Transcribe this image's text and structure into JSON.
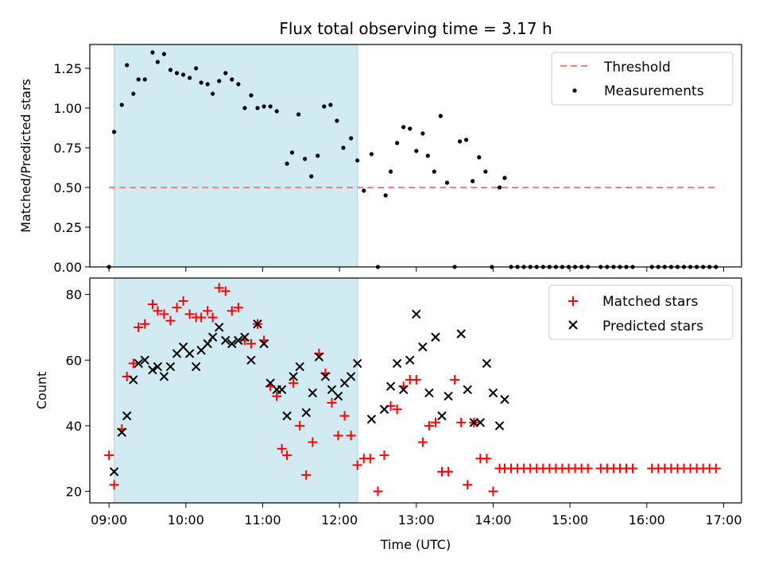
{
  "title": "Flux total observing time = 3.17 h",
  "shade_color": "#add8e6",
  "colors": {
    "threshold": "#ff7f7f",
    "measurement": "#000000",
    "matched": "#ff0000",
    "predicted": "#000000"
  },
  "chart_data": [
    {
      "type": "scatter",
      "ylabel": "Matched/Predicted stars",
      "ylim": [
        0,
        1.4
      ],
      "xlim": [
        "08:45",
        "17:14"
      ],
      "yticks": [
        "0.00",
        "0.25",
        "0.50",
        "0.75",
        "1.00",
        "1.25"
      ],
      "ytick_values": [
        0,
        0.25,
        0.5,
        0.75,
        1.0,
        1.25
      ],
      "shaded_interval": [
        "09:04",
        "12:14"
      ],
      "legend": {
        "position": "top-right",
        "entries": [
          "Threshold",
          "Measurements"
        ]
      },
      "threshold": {
        "name": "Threshold",
        "y": 0.5,
        "x_range": [
          "09:00",
          "16:55"
        ],
        "style": "dashed"
      },
      "series": [
        {
          "name": "Measurements",
          "marker": "dot",
          "points": [
            [
              "09:00",
              0.0
            ],
            [
              "09:04",
              0.85
            ],
            [
              "09:10",
              1.02
            ],
            [
              "09:14",
              1.27
            ],
            [
              "09:19",
              1.09
            ],
            [
              "09:23",
              1.18
            ],
            [
              "09:28",
              1.18
            ],
            [
              "09:34",
              1.35
            ],
            [
              "09:38",
              1.29
            ],
            [
              "09:43",
              1.34
            ],
            [
              "09:48",
              1.24
            ],
            [
              "09:53",
              1.22
            ],
            [
              "09:58",
              1.21
            ],
            [
              "10:03",
              1.19
            ],
            [
              "10:08",
              1.25
            ],
            [
              "10:12",
              1.16
            ],
            [
              "10:17",
              1.15
            ],
            [
              "10:21",
              1.09
            ],
            [
              "10:26",
              1.17
            ],
            [
              "10:31",
              1.22
            ],
            [
              "10:36",
              1.18
            ],
            [
              "10:41",
              1.15
            ],
            [
              "10:46",
              1.0
            ],
            [
              "10:51",
              1.08
            ],
            [
              "10:56",
              1.0
            ],
            [
              "11:01",
              1.01
            ],
            [
              "11:06",
              1.01
            ],
            [
              "11:11",
              0.98
            ],
            [
              "11:19",
              0.65
            ],
            [
              "11:23",
              0.72
            ],
            [
              "11:28",
              0.96
            ],
            [
              "11:33",
              0.68
            ],
            [
              "11:38",
              0.57
            ],
            [
              "11:43",
              0.7
            ],
            [
              "11:48",
              1.01
            ],
            [
              "11:53",
              1.02
            ],
            [
              "11:58",
              0.92
            ],
            [
              "12:03",
              0.75
            ],
            [
              "12:09",
              0.81
            ],
            [
              "12:14",
              0.67
            ],
            [
              "12:19",
              0.48
            ],
            [
              "12:25",
              0.71
            ],
            [
              "12:30",
              0.0
            ],
            [
              "12:36",
              0.45
            ],
            [
              "12:40",
              0.6
            ],
            [
              "12:45",
              0.78
            ],
            [
              "12:50",
              0.88
            ],
            [
              "12:55",
              0.87
            ],
            [
              "13:00",
              0.73
            ],
            [
              "13:05",
              0.84
            ],
            [
              "13:09",
              0.7
            ],
            [
              "13:14",
              0.6
            ],
            [
              "13:19",
              0.95
            ],
            [
              "13:24",
              0.53
            ],
            [
              "13:30",
              0.0
            ],
            [
              "13:34",
              0.79
            ],
            [
              "13:39",
              0.8
            ],
            [
              "13:44",
              0.54
            ],
            [
              "13:49",
              0.69
            ],
            [
              "13:54",
              0.6
            ],
            [
              "13:59",
              0.0
            ],
            [
              "14:05",
              0.5
            ],
            [
              "14:09",
              0.56
            ],
            [
              "14:14",
              0.0
            ],
            [
              "14:19",
              0.0
            ],
            [
              "14:24",
              0.0
            ],
            [
              "14:29",
              0.0
            ],
            [
              "14:34",
              0.0
            ],
            [
              "14:39",
              0.0
            ],
            [
              "14:44",
              0.0
            ],
            [
              "14:49",
              0.0
            ],
            [
              "14:54",
              0.0
            ],
            [
              "14:59",
              0.0
            ],
            [
              "15:04",
              0.0
            ],
            [
              "15:09",
              0.0
            ],
            [
              "15:14",
              0.0
            ],
            [
              "15:24",
              0.0
            ],
            [
              "15:29",
              0.0
            ],
            [
              "15:34",
              0.0
            ],
            [
              "15:39",
              0.0
            ],
            [
              "15:44",
              0.0
            ],
            [
              "15:49",
              0.0
            ],
            [
              "16:04",
              0.0
            ],
            [
              "16:09",
              0.0
            ],
            [
              "16:14",
              0.0
            ],
            [
              "16:19",
              0.0
            ],
            [
              "16:24",
              0.0
            ],
            [
              "16:29",
              0.0
            ],
            [
              "16:34",
              0.0
            ],
            [
              "16:39",
              0.0
            ],
            [
              "16:44",
              0.0
            ],
            [
              "16:49",
              0.0
            ],
            [
              "16:54",
              0.0
            ]
          ]
        }
      ]
    },
    {
      "type": "scatter",
      "xlabel": "Time (UTC)",
      "ylabel": "Count",
      "ylim": [
        16.5,
        85
      ],
      "xlim": [
        "08:45",
        "17:14"
      ],
      "xticks": [
        "09:00",
        "10:00",
        "11:00",
        "12:00",
        "13:00",
        "14:00",
        "15:00",
        "16:00",
        "17:00"
      ],
      "yticks": [
        "20",
        "40",
        "60",
        "80"
      ],
      "ytick_values": [
        20,
        40,
        60,
        80
      ],
      "shaded_interval": [
        "09:04",
        "12:14"
      ],
      "legend": {
        "position": "top-right",
        "entries": [
          "Matched stars",
          "Predicted stars"
        ]
      },
      "series": [
        {
          "name": "Matched stars",
          "marker": "plus",
          "points": [
            [
              "09:00",
              31
            ],
            [
              "09:04",
              22
            ],
            [
              "09:10",
              39
            ],
            [
              "09:14",
              55
            ],
            [
              "09:19",
              59
            ],
            [
              "09:23",
              70
            ],
            [
              "09:28",
              71
            ],
            [
              "09:34",
              77
            ],
            [
              "09:38",
              75
            ],
            [
              "09:43",
              74
            ],
            [
              "09:48",
              72
            ],
            [
              "09:53",
              76
            ],
            [
              "09:58",
              78
            ],
            [
              "10:03",
              74
            ],
            [
              "10:08",
              73
            ],
            [
              "10:12",
              73
            ],
            [
              "10:17",
              75
            ],
            [
              "10:21",
              73
            ],
            [
              "10:26",
              82
            ],
            [
              "10:31",
              81
            ],
            [
              "10:36",
              75
            ],
            [
              "10:41",
              76
            ],
            [
              "10:46",
              66
            ],
            [
              "10:51",
              65
            ],
            [
              "10:56",
              71
            ],
            [
              "11:01",
              66
            ],
            [
              "11:06",
              52
            ],
            [
              "11:11",
              49
            ],
            [
              "11:15",
              33
            ],
            [
              "11:19",
              31
            ],
            [
              "11:24",
              53
            ],
            [
              "11:29",
              40
            ],
            [
              "11:34",
              25
            ],
            [
              "11:39",
              35
            ],
            [
              "11:44",
              62
            ],
            [
              "11:49",
              56
            ],
            [
              "11:54",
              47
            ],
            [
              "11:59",
              37
            ],
            [
              "12:04",
              43
            ],
            [
              "12:09",
              37
            ],
            [
              "12:14",
              28
            ],
            [
              "12:19",
              30
            ],
            [
              "12:24",
              30
            ],
            [
              "12:30",
              20
            ],
            [
              "12:35",
              31
            ],
            [
              "12:40",
              46
            ],
            [
              "12:45",
              45
            ],
            [
              "12:50",
              52
            ],
            [
              "12:55",
              54
            ],
            [
              "13:00",
              54
            ],
            [
              "13:05",
              35
            ],
            [
              "13:10",
              40
            ],
            [
              "13:15",
              41
            ],
            [
              "13:20",
              26
            ],
            [
              "13:25",
              26
            ],
            [
              "13:30",
              54
            ],
            [
              "13:35",
              41
            ],
            [
              "13:40",
              22
            ],
            [
              "13:45",
              41
            ],
            [
              "13:50",
              30
            ],
            [
              "13:55",
              30
            ],
            [
              "14:00",
              20
            ],
            [
              "14:05",
              27
            ],
            [
              "14:09",
              27
            ],
            [
              "14:14",
              27
            ],
            [
              "14:19",
              27
            ],
            [
              "14:24",
              27
            ],
            [
              "14:29",
              27
            ],
            [
              "14:34",
              27
            ],
            [
              "14:39",
              27
            ],
            [
              "14:44",
              27
            ],
            [
              "14:49",
              27
            ],
            [
              "14:54",
              27
            ],
            [
              "14:59",
              27
            ],
            [
              "15:04",
              27
            ],
            [
              "15:09",
              27
            ],
            [
              "15:14",
              27
            ],
            [
              "15:24",
              27
            ],
            [
              "15:29",
              27
            ],
            [
              "15:34",
              27
            ],
            [
              "15:39",
              27
            ],
            [
              "15:44",
              27
            ],
            [
              "15:49",
              27
            ],
            [
              "16:04",
              27
            ],
            [
              "16:09",
              27
            ],
            [
              "16:14",
              27
            ],
            [
              "16:19",
              27
            ],
            [
              "16:24",
              27
            ],
            [
              "16:29",
              27
            ],
            [
              "16:34",
              27
            ],
            [
              "16:39",
              27
            ],
            [
              "16:44",
              27
            ],
            [
              "16:49",
              27
            ],
            [
              "16:54",
              27
            ]
          ]
        },
        {
          "name": "Predicted stars",
          "marker": "x",
          "points": [
            [
              "09:04",
              26
            ],
            [
              "09:10",
              38
            ],
            [
              "09:14",
              43
            ],
            [
              "09:19",
              54
            ],
            [
              "09:23",
              59
            ],
            [
              "09:28",
              60
            ],
            [
              "09:34",
              57
            ],
            [
              "09:38",
              58
            ],
            [
              "09:43",
              55
            ],
            [
              "09:48",
              58
            ],
            [
              "09:53",
              62
            ],
            [
              "09:58",
              64
            ],
            [
              "10:03",
              62
            ],
            [
              "10:08",
              58
            ],
            [
              "10:12",
              63
            ],
            [
              "10:17",
              65
            ],
            [
              "10:21",
              67
            ],
            [
              "10:26",
              70
            ],
            [
              "10:31",
              66
            ],
            [
              "10:36",
              65
            ],
            [
              "10:41",
              66
            ],
            [
              "10:46",
              67
            ],
            [
              "10:51",
              60
            ],
            [
              "10:56",
              71
            ],
            [
              "11:01",
              65
            ],
            [
              "11:06",
              53
            ],
            [
              "11:11",
              51
            ],
            [
              "11:15",
              51
            ],
            [
              "11:19",
              43
            ],
            [
              "11:24",
              55
            ],
            [
              "11:29",
              58
            ],
            [
              "11:34",
              44
            ],
            [
              "11:39",
              50
            ],
            [
              "11:44",
              61
            ],
            [
              "11:49",
              55
            ],
            [
              "11:54",
              51
            ],
            [
              "11:59",
              49
            ],
            [
              "12:04",
              53
            ],
            [
              "12:09",
              55
            ],
            [
              "12:14",
              59
            ],
            [
              "12:25",
              42
            ],
            [
              "12:35",
              45
            ],
            [
              "12:40",
              52
            ],
            [
              "12:45",
              59
            ],
            [
              "12:50",
              51
            ],
            [
              "12:55",
              60
            ],
            [
              "13:00",
              74
            ],
            [
              "13:05",
              64
            ],
            [
              "13:10",
              50
            ],
            [
              "13:15",
              67
            ],
            [
              "13:20",
              43
            ],
            [
              "13:25",
              49
            ],
            [
              "13:35",
              68
            ],
            [
              "13:40",
              51
            ],
            [
              "13:45",
              41
            ],
            [
              "13:50",
              41
            ],
            [
              "13:55",
              59
            ],
            [
              "14:00",
              50
            ],
            [
              "14:05",
              40
            ],
            [
              "14:09",
              48
            ]
          ]
        }
      ]
    }
  ]
}
